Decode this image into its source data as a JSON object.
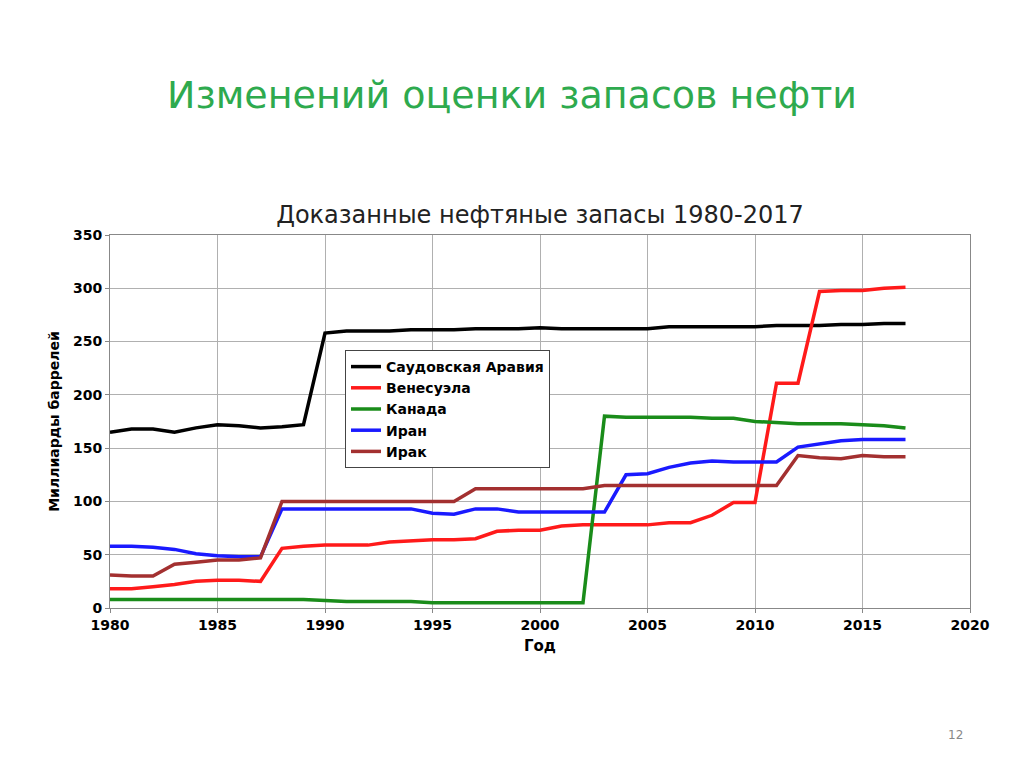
{
  "heading": "Изменений оценки запасов нефти",
  "page_number": 12,
  "chart_data": {
    "type": "line",
    "title": "Доказанные нефтяные запасы 1980-2017",
    "x_label": "Год",
    "y_label": "Миллиарды баррелей",
    "x": [
      1980,
      1981,
      1982,
      1983,
      1984,
      1985,
      1986,
      1987,
      1988,
      1989,
      1990,
      1991,
      1992,
      1993,
      1994,
      1995,
      1996,
      1997,
      1998,
      1999,
      2000,
      2001,
      2002,
      2003,
      2004,
      2005,
      2006,
      2007,
      2008,
      2009,
      2010,
      2011,
      2012,
      2013,
      2014,
      2015,
      2016,
      2017
    ],
    "series": [
      {
        "name": "Саудовская Аравия",
        "color": "#000000",
        "values": [
          165,
          168,
          168,
          165,
          169,
          172,
          171,
          169,
          170,
          172,
          258,
          260,
          260,
          260,
          261,
          261,
          261,
          262,
          262,
          262,
          263,
          262,
          262,
          262,
          262,
          262,
          264,
          264,
          264,
          264,
          264,
          265,
          265,
          265,
          266,
          266,
          267,
          267
        ]
      },
      {
        "name": "Венесуэла",
        "color": "#ff1a1a",
        "values": [
          18,
          18,
          20,
          22,
          25,
          26,
          26,
          25,
          56,
          58,
          59,
          59,
          59,
          62,
          63,
          64,
          64,
          65,
          72,
          73,
          73,
          77,
          78,
          78,
          78,
          78,
          80,
          80,
          87,
          99,
          99,
          211,
          211,
          297,
          298,
          298,
          300,
          301
        ]
      },
      {
        "name": "Канада",
        "color": "#1a8c1a",
        "values": [
          8,
          8,
          8,
          8,
          8,
          8,
          8,
          8,
          8,
          8,
          7,
          6,
          6,
          6,
          6,
          5,
          5,
          5,
          5,
          5,
          5,
          5,
          5,
          180,
          179,
          179,
          179,
          179,
          178,
          178,
          175,
          174,
          173,
          173,
          173,
          172,
          171,
          169
        ]
      },
      {
        "name": "Иран",
        "color": "#1a1aff",
        "values": [
          58,
          58,
          57,
          55,
          51,
          49,
          48,
          48,
          93,
          93,
          93,
          93,
          93,
          93,
          93,
          89,
          88,
          93,
          93,
          90,
          90,
          90,
          90,
          90,
          125,
          126,
          132,
          136,
          138,
          137,
          137,
          137,
          151,
          154,
          157,
          158,
          158,
          158
        ]
      },
      {
        "name": "Ирак",
        "color": "#a33030",
        "values": [
          31,
          30,
          30,
          41,
          43,
          45,
          45,
          47,
          100,
          100,
          100,
          100,
          100,
          100,
          100,
          100,
          100,
          112,
          112,
          112,
          112,
          112,
          112,
          115,
          115,
          115,
          115,
          115,
          115,
          115,
          115,
          115,
          143,
          141,
          140,
          143,
          142,
          142
        ]
      }
    ],
    "xlim": [
      1980,
      2020
    ],
    "xticks": [
      1980,
      1985,
      1990,
      1995,
      2000,
      2005,
      2010,
      2015,
      2020
    ],
    "ylim": [
      0,
      350
    ],
    "yticks": [
      0,
      50,
      100,
      150,
      200,
      250,
      300,
      350
    ],
    "grid": true,
    "legend": "top left"
  }
}
